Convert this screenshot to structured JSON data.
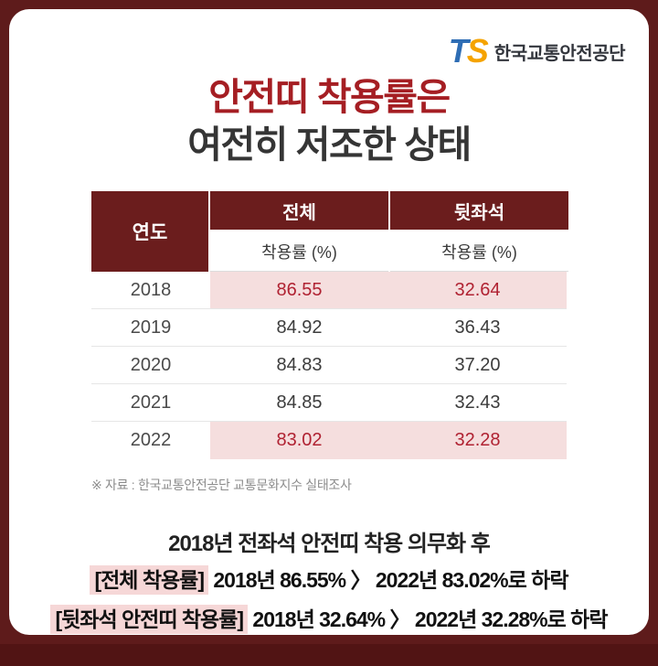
{
  "logo": {
    "ts_t": "T",
    "ts_s": "S",
    "org_name": "한국교통안전공단"
  },
  "title": {
    "line1": "안전띠 착용률은",
    "line2": "여전히 저조한 상태"
  },
  "table": {
    "year_header": "연도",
    "col_total": "전체",
    "col_rear": "뒷좌석",
    "sub_header": "착용률 (%)",
    "rows": [
      {
        "year": "2018",
        "total": "86.55",
        "rear": "32.64",
        "highlight": true
      },
      {
        "year": "2019",
        "total": "84.92",
        "rear": "36.43",
        "highlight": false
      },
      {
        "year": "2020",
        "total": "84.83",
        "rear": "37.20",
        "highlight": false
      },
      {
        "year": "2021",
        "total": "84.85",
        "rear": "32.43",
        "highlight": false
      },
      {
        "year": "2022",
        "total": "83.02",
        "rear": "32.28",
        "highlight": true
      }
    ]
  },
  "footnote": "※ 자료 : 한국교통안전공단 교통문화지수 실태조사",
  "summary": {
    "intro": "2018년 전좌석 안전띠 착용 의무화 후",
    "line1_label": "[전체 착용률]",
    "line1_text": " 2018년 86.55% 〉 2022년 83.02%로 하락",
    "line2_label": "[뒷좌석 안전띠 착용률]",
    "line2_text": " 2018년 32.64% 〉 2022년 32.28%로 하락"
  },
  "colors": {
    "frame": "#5e1b1b",
    "table_header_bg": "#6b1d1d",
    "highlight_bg": "#f5dede",
    "highlight_text": "#b02232",
    "title_red": "#a51e23",
    "logo_blue": "#2e6db4",
    "logo_orange": "#f5a300"
  },
  "chart_data": {
    "type": "table",
    "title": "안전띠 착용률은 여전히 저조한 상태",
    "columns": [
      "연도",
      "전체 착용률 (%)",
      "뒷좌석 착용률 (%)"
    ],
    "x": [
      2018,
      2019,
      2020,
      2021,
      2022
    ],
    "series": [
      {
        "name": "전체 착용률 (%)",
        "values": [
          86.55,
          84.92,
          84.83,
          84.85,
          83.02
        ]
      },
      {
        "name": "뒷좌석 착용률 (%)",
        "values": [
          32.64,
          36.43,
          37.2,
          32.43,
          32.28
        ]
      }
    ],
    "highlighted_years": [
      2018,
      2022
    ],
    "source": "한국교통안전공단 교통문화지수 실태조사"
  }
}
